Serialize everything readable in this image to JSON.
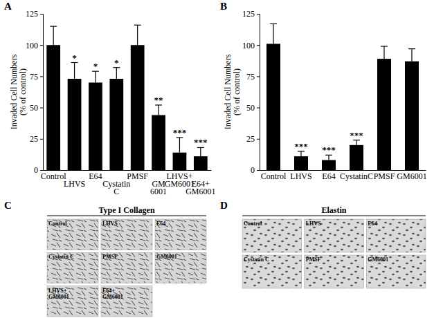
{
  "chart_data": [
    {
      "type": "bar",
      "title": "A",
      "y_label": [
        "Invaded Cell Numbers",
        "(% of control)"
      ],
      "categories": [
        "Control",
        "LHVS",
        "E64",
        "Cystatin C",
        "PMSF",
        "GM 6001",
        "LHVS+ GM6001",
        "E64+ GM6001"
      ],
      "values": [
        100,
        73,
        70,
        73,
        100,
        44,
        14,
        11
      ],
      "errors": [
        15,
        13,
        9,
        9,
        16,
        8,
        12,
        7
      ],
      "annotations": [
        null,
        "*",
        "*",
        "*",
        null,
        "**",
        "***",
        "***"
      ],
      "color": "#000000",
      "ylim": [
        0,
        125
      ],
      "yticks": [
        0,
        25,
        50,
        75,
        100,
        125
      ],
      "grid": false
    },
    {
      "type": "bar",
      "title": "B",
      "y_label": [
        "Invaded Cell Numbers",
        "(% of control)"
      ],
      "categories": [
        "Control",
        "LHVS",
        "E64",
        "CystatinC",
        "PMSF",
        "GM6001"
      ],
      "values": [
        101,
        11,
        8,
        20,
        89,
        87
      ],
      "errors": [
        16,
        4,
        4,
        4,
        10,
        10
      ],
      "annotations": [
        null,
        "***",
        "***",
        "***",
        null,
        null
      ],
      "color": "#000000",
      "ylim": [
        0,
        125
      ],
      "yticks": [
        0,
        25,
        50,
        75,
        100,
        125
      ],
      "grid": false
    }
  ],
  "image_panels": [
    {
      "panel": "C",
      "title": "Type I Collagen",
      "labels": [
        "Control",
        "LHVS",
        "E64",
        "Cystatin C",
        "PMSF",
        "GM6001",
        "LHVS+ GM6001",
        "E64+ GM6001"
      ]
    },
    {
      "panel": "D",
      "title": "Elastin",
      "labels": [
        "Control",
        "LHVS",
        "E64",
        "Cystatin C",
        "PMSF",
        "GM6001"
      ]
    }
  ]
}
